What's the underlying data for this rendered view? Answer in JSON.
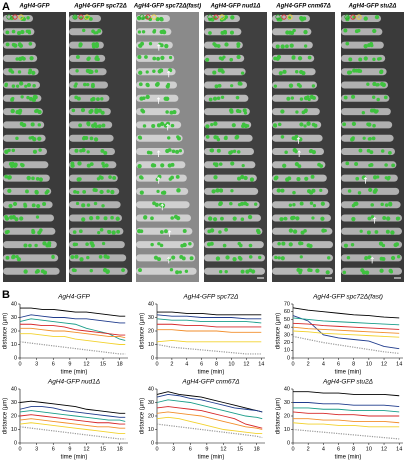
{
  "panel_a": {
    "label": "A",
    "columns": [
      "AgH4-GFP",
      "AgH4-GFP spc72Δ",
      "AgH4-GFP spc72Δ(fast)",
      "AgH4-GFP nud1Δ",
      "AgH4-GFP cnm67Δ",
      "AgH4-GFP stu2Δ"
    ]
  },
  "panel_b": {
    "label": "B"
  },
  "chart_data": [
    {
      "type": "line",
      "title": "AgH4-GFP",
      "xlabel": "time (min)",
      "ylabel": "distance (µm)",
      "x": [
        0,
        2,
        4,
        6,
        8,
        10,
        12,
        14,
        16,
        18,
        19
      ],
      "xlim": [
        0,
        19.5
      ],
      "xticks": [
        0,
        3,
        6,
        9,
        12,
        15,
        18
      ],
      "ylim": [
        0,
        40
      ],
      "yticks": [
        0,
        10,
        20,
        30,
        40
      ],
      "series": [
        {
          "color": "#000000",
          "values": [
            37,
            37,
            36,
            36,
            35,
            34,
            34,
            33,
            32,
            31,
            31
          ]
        },
        {
          "color": "#1f3b8c",
          "values": [
            30,
            32,
            31,
            30,
            30,
            29,
            29,
            28,
            27,
            26,
            26
          ]
        },
        {
          "color": "#1b9e8a",
          "values": [
            27,
            29,
            28,
            27,
            26,
            25,
            22,
            20,
            18,
            14,
            13
          ]
        },
        {
          "color": "#d62728",
          "values": [
            25,
            25,
            24,
            24,
            23,
            21,
            20,
            19,
            18,
            17,
            17
          ]
        },
        {
          "color": "#f28e2b",
          "values": [
            22,
            22,
            21,
            20,
            20,
            19,
            18,
            17,
            16,
            16,
            15
          ]
        },
        {
          "color": "#f2d22e",
          "values": [
            18,
            18,
            17,
            16,
            16,
            14,
            13,
            12,
            11,
            10,
            10
          ]
        },
        {
          "color": "#999999",
          "linestyle": "dotted",
          "values": [
            12,
            11,
            10,
            9,
            8,
            7,
            6,
            5,
            4,
            3,
            3
          ]
        }
      ]
    },
    {
      "type": "line",
      "title": "AgH4-GFP spc72Δ",
      "xlabel": "time (min)",
      "ylabel": "distance (µm)",
      "x": [
        0,
        2,
        4,
        6,
        8,
        10,
        12,
        14
      ],
      "xlim": [
        0,
        14.5
      ],
      "xticks": [
        0,
        2,
        4,
        6,
        8,
        10,
        12,
        14
      ],
      "ylim": [
        0,
        40
      ],
      "yticks": [
        0,
        10,
        20,
        30,
        40
      ],
      "series": [
        {
          "color": "#000000",
          "values": [
            34,
            34,
            33,
            33,
            32,
            32,
            32,
            32
          ]
        },
        {
          "color": "#1f3b8c",
          "values": [
            32,
            31,
            31,
            30,
            30,
            30,
            29,
            29
          ]
        },
        {
          "color": "#1b9e8a",
          "values": [
            29,
            28,
            28,
            27,
            27,
            27,
            27,
            26
          ]
        },
        {
          "color": "#d62728",
          "values": [
            25,
            25,
            24,
            24,
            23,
            23,
            23,
            23
          ]
        },
        {
          "color": "#f28e2b",
          "values": [
            21,
            21,
            20,
            20,
            20,
            19,
            19,
            19
          ]
        },
        {
          "color": "#f2d22e",
          "values": [
            12,
            13,
            12,
            12,
            12,
            12,
            12,
            12
          ]
        },
        {
          "color": "#999999",
          "linestyle": "dotted",
          "values": [
            10,
            8,
            7,
            6,
            5,
            4,
            3,
            3
          ]
        }
      ]
    },
    {
      "type": "line",
      "title": "AgH4-GFP spc72Δ(fast)",
      "xlabel": "time (min)",
      "ylabel": "distance (µm)",
      "x": [
        0,
        2,
        4,
        6,
        8,
        10,
        12,
        14
      ],
      "xlim": [
        0,
        14.5
      ],
      "xticks": [
        0,
        2,
        4,
        6,
        8,
        10,
        12,
        14
      ],
      "ylim": [
        0,
        70
      ],
      "yticks": [
        0,
        10,
        20,
        30,
        40,
        50,
        60,
        70
      ],
      "series": [
        {
          "color": "#000000",
          "values": [
            65,
            62,
            60,
            58,
            56,
            55,
            53,
            52
          ]
        },
        {
          "color": "#1f3b8c",
          "values": [
            55,
            48,
            30,
            26,
            24,
            22,
            15,
            12
          ]
        },
        {
          "color": "#1b9e8a",
          "values": [
            52,
            50,
            48,
            47,
            46,
            45,
            44,
            43
          ]
        },
        {
          "color": "#d62728",
          "values": [
            45,
            44,
            42,
            41,
            40,
            39,
            38,
            37
          ]
        },
        {
          "color": "#f28e2b",
          "values": [
            40,
            38,
            37,
            36,
            35,
            34,
            33,
            32
          ]
        },
        {
          "color": "#f2d22e",
          "values": [
            35,
            34,
            32,
            31,
            30,
            29,
            28,
            27
          ]
        },
        {
          "color": "#999999",
          "linestyle": "dotted",
          "values": [
            28,
            24,
            20,
            17,
            14,
            11,
            8,
            6
          ]
        }
      ]
    },
    {
      "type": "line",
      "title": "AgH4-GFP nud1Δ",
      "xlabel": "time (min)",
      "ylabel": "distance (µm)",
      "x": [
        0,
        2,
        4,
        6,
        8,
        10,
        12,
        14,
        16,
        18,
        19
      ],
      "xlim": [
        0,
        19.5
      ],
      "xticks": [
        0,
        3,
        6,
        9,
        12,
        15,
        18
      ],
      "ylim": [
        0,
        40
      ],
      "yticks": [
        0,
        10,
        20,
        30,
        40
      ],
      "series": [
        {
          "color": "#000000",
          "values": [
            30,
            31,
            30,
            29,
            28,
            27,
            25,
            24,
            23,
            22,
            22
          ]
        },
        {
          "color": "#1f3b8c",
          "values": [
            25,
            27,
            27,
            26,
            24,
            23,
            22,
            21,
            20,
            19,
            19
          ]
        },
        {
          "color": "#1b9e8a",
          "values": [
            23,
            24,
            23,
            22,
            21,
            20,
            19,
            18,
            17,
            17,
            16
          ]
        },
        {
          "color": "#d62728",
          "values": [
            20,
            21,
            20,
            19,
            18,
            17,
            16,
            15,
            15,
            14,
            14
          ]
        },
        {
          "color": "#f28e2b",
          "values": [
            17,
            18,
            17,
            16,
            15,
            14,
            13,
            12,
            12,
            11,
            11
          ]
        },
        {
          "color": "#f2d22e",
          "values": [
            14,
            15,
            14,
            13,
            12,
            11,
            10,
            9,
            8,
            7,
            7
          ]
        },
        {
          "color": "#999999",
          "linestyle": "dotted",
          "values": [
            12,
            11,
            10,
            9,
            8,
            7,
            6,
            5,
            4,
            3,
            3
          ]
        }
      ]
    },
    {
      "type": "line",
      "title": "AgH4-GFP cnm67Δ",
      "xlabel": "time (min)",
      "ylabel": "distance (µm)",
      "x": [
        0,
        2,
        4,
        6,
        8,
        10,
        12,
        14,
        16,
        18,
        19
      ],
      "xlim": [
        0,
        19.5
      ],
      "xticks": [
        0,
        3,
        6,
        9,
        12,
        15,
        18
      ],
      "ylim": [
        0,
        40
      ],
      "yticks": [
        0,
        10,
        20,
        30,
        40
      ],
      "series": [
        {
          "color": "#000000",
          "values": [
            36,
            38,
            36,
            35,
            34,
            32,
            30,
            28,
            26,
            24,
            23
          ]
        },
        {
          "color": "#1f3b8c",
          "values": [
            34,
            36,
            35,
            33,
            32,
            30,
            28,
            26,
            25,
            24,
            23
          ]
        },
        {
          "color": "#1b9e8a",
          "values": [
            30,
            32,
            31,
            30,
            28,
            26,
            24,
            22,
            20,
            19,
            18
          ]
        },
        {
          "color": "#d62728",
          "values": [
            26,
            27,
            26,
            25,
            24,
            22,
            20,
            18,
            14,
            12,
            11
          ]
        },
        {
          "color": "#f28e2b",
          "values": [
            22,
            23,
            22,
            21,
            20,
            18,
            16,
            14,
            12,
            11,
            10
          ]
        },
        {
          "color": "#f2d22e",
          "values": [
            18,
            19,
            18,
            16,
            14,
            12,
            10,
            9,
            8,
            7,
            7
          ]
        },
        {
          "color": "#999999",
          "linestyle": "dotted",
          "values": [
            14,
            13,
            12,
            11,
            10,
            9,
            8,
            7,
            6,
            5,
            4
          ]
        }
      ]
    },
    {
      "type": "line",
      "title": "AgH4-GFP stu2Δ",
      "xlabel": "time (min)",
      "ylabel": "distance (µm)",
      "x": [
        0,
        2,
        4,
        6,
        8,
        10,
        12,
        14
      ],
      "xlim": [
        0,
        14.5
      ],
      "xticks": [
        0,
        2,
        4,
        6,
        8,
        10,
        12,
        14
      ],
      "ylim": [
        0,
        40
      ],
      "yticks": [
        0,
        10,
        20,
        30,
        40
      ],
      "series": [
        {
          "color": "#000000",
          "values": [
            38,
            38,
            37,
            37,
            36,
            36,
            36,
            35
          ]
        },
        {
          "color": "#1f3b8c",
          "values": [
            30,
            30,
            29,
            29,
            28,
            28,
            28,
            27
          ]
        },
        {
          "color": "#1b9e8a",
          "values": [
            26,
            26,
            25,
            25,
            24,
            24,
            24,
            23
          ]
        },
        {
          "color": "#d62728",
          "values": [
            23,
            22,
            22,
            21,
            21,
            20,
            20,
            20
          ]
        },
        {
          "color": "#f28e2b",
          "values": [
            18,
            18,
            17,
            17,
            16,
            16,
            16,
            15
          ]
        },
        {
          "color": "#f2d22e",
          "values": [
            15,
            14,
            14,
            13,
            13,
            12,
            12,
            12
          ]
        },
        {
          "color": "#999999",
          "linestyle": "dotted",
          "values": [
            10,
            9,
            8,
            7,
            6,
            5,
            4,
            3
          ]
        }
      ]
    }
  ]
}
